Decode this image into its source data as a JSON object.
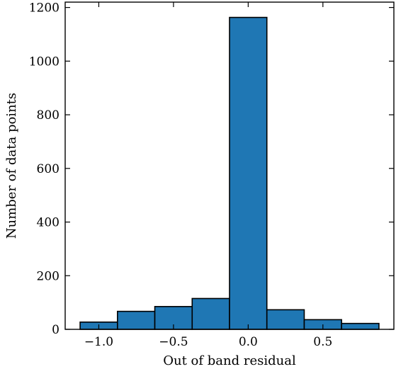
{
  "chart_data": {
    "type": "bar",
    "title": "",
    "xlabel": "Out of band residual",
    "ylabel": "Number of data points",
    "bins": [
      {
        "x0": -1.125,
        "x1": -0.875,
        "value": 27
      },
      {
        "x0": -0.875,
        "x1": -0.625,
        "value": 67
      },
      {
        "x0": -0.625,
        "x1": -0.375,
        "value": 85
      },
      {
        "x0": -0.375,
        "x1": -0.125,
        "value": 115
      },
      {
        "x0": -0.125,
        "x1": 0.125,
        "value": 1163
      },
      {
        "x0": 0.125,
        "x1": 0.375,
        "value": 73
      },
      {
        "x0": 0.375,
        "x1": 0.625,
        "value": 36
      },
      {
        "x0": 0.625,
        "x1": 0.875,
        "value": 22
      }
    ],
    "xlim": [
      -1.225,
      0.975
    ],
    "ylim": [
      0,
      1220
    ],
    "xticks": [
      {
        "value": -1.0,
        "label": "−1.0"
      },
      {
        "value": -0.5,
        "label": "−0.5"
      },
      {
        "value": 0.0,
        "label": "0.0"
      },
      {
        "value": 0.5,
        "label": "0.5"
      }
    ],
    "yticks": [
      {
        "value": 0,
        "label": "0"
      },
      {
        "value": 200,
        "label": "200"
      },
      {
        "value": 400,
        "label": "400"
      },
      {
        "value": 600,
        "label": "600"
      },
      {
        "value": 800,
        "label": "800"
      },
      {
        "value": 1000,
        "label": "1000"
      },
      {
        "value": 1200,
        "label": "1200"
      }
    ],
    "colors": {
      "bar": "#1f77b4",
      "edge": "#000000"
    },
    "grid": false,
    "ticks_direction": "in",
    "ticks_on_all_sides": true
  }
}
